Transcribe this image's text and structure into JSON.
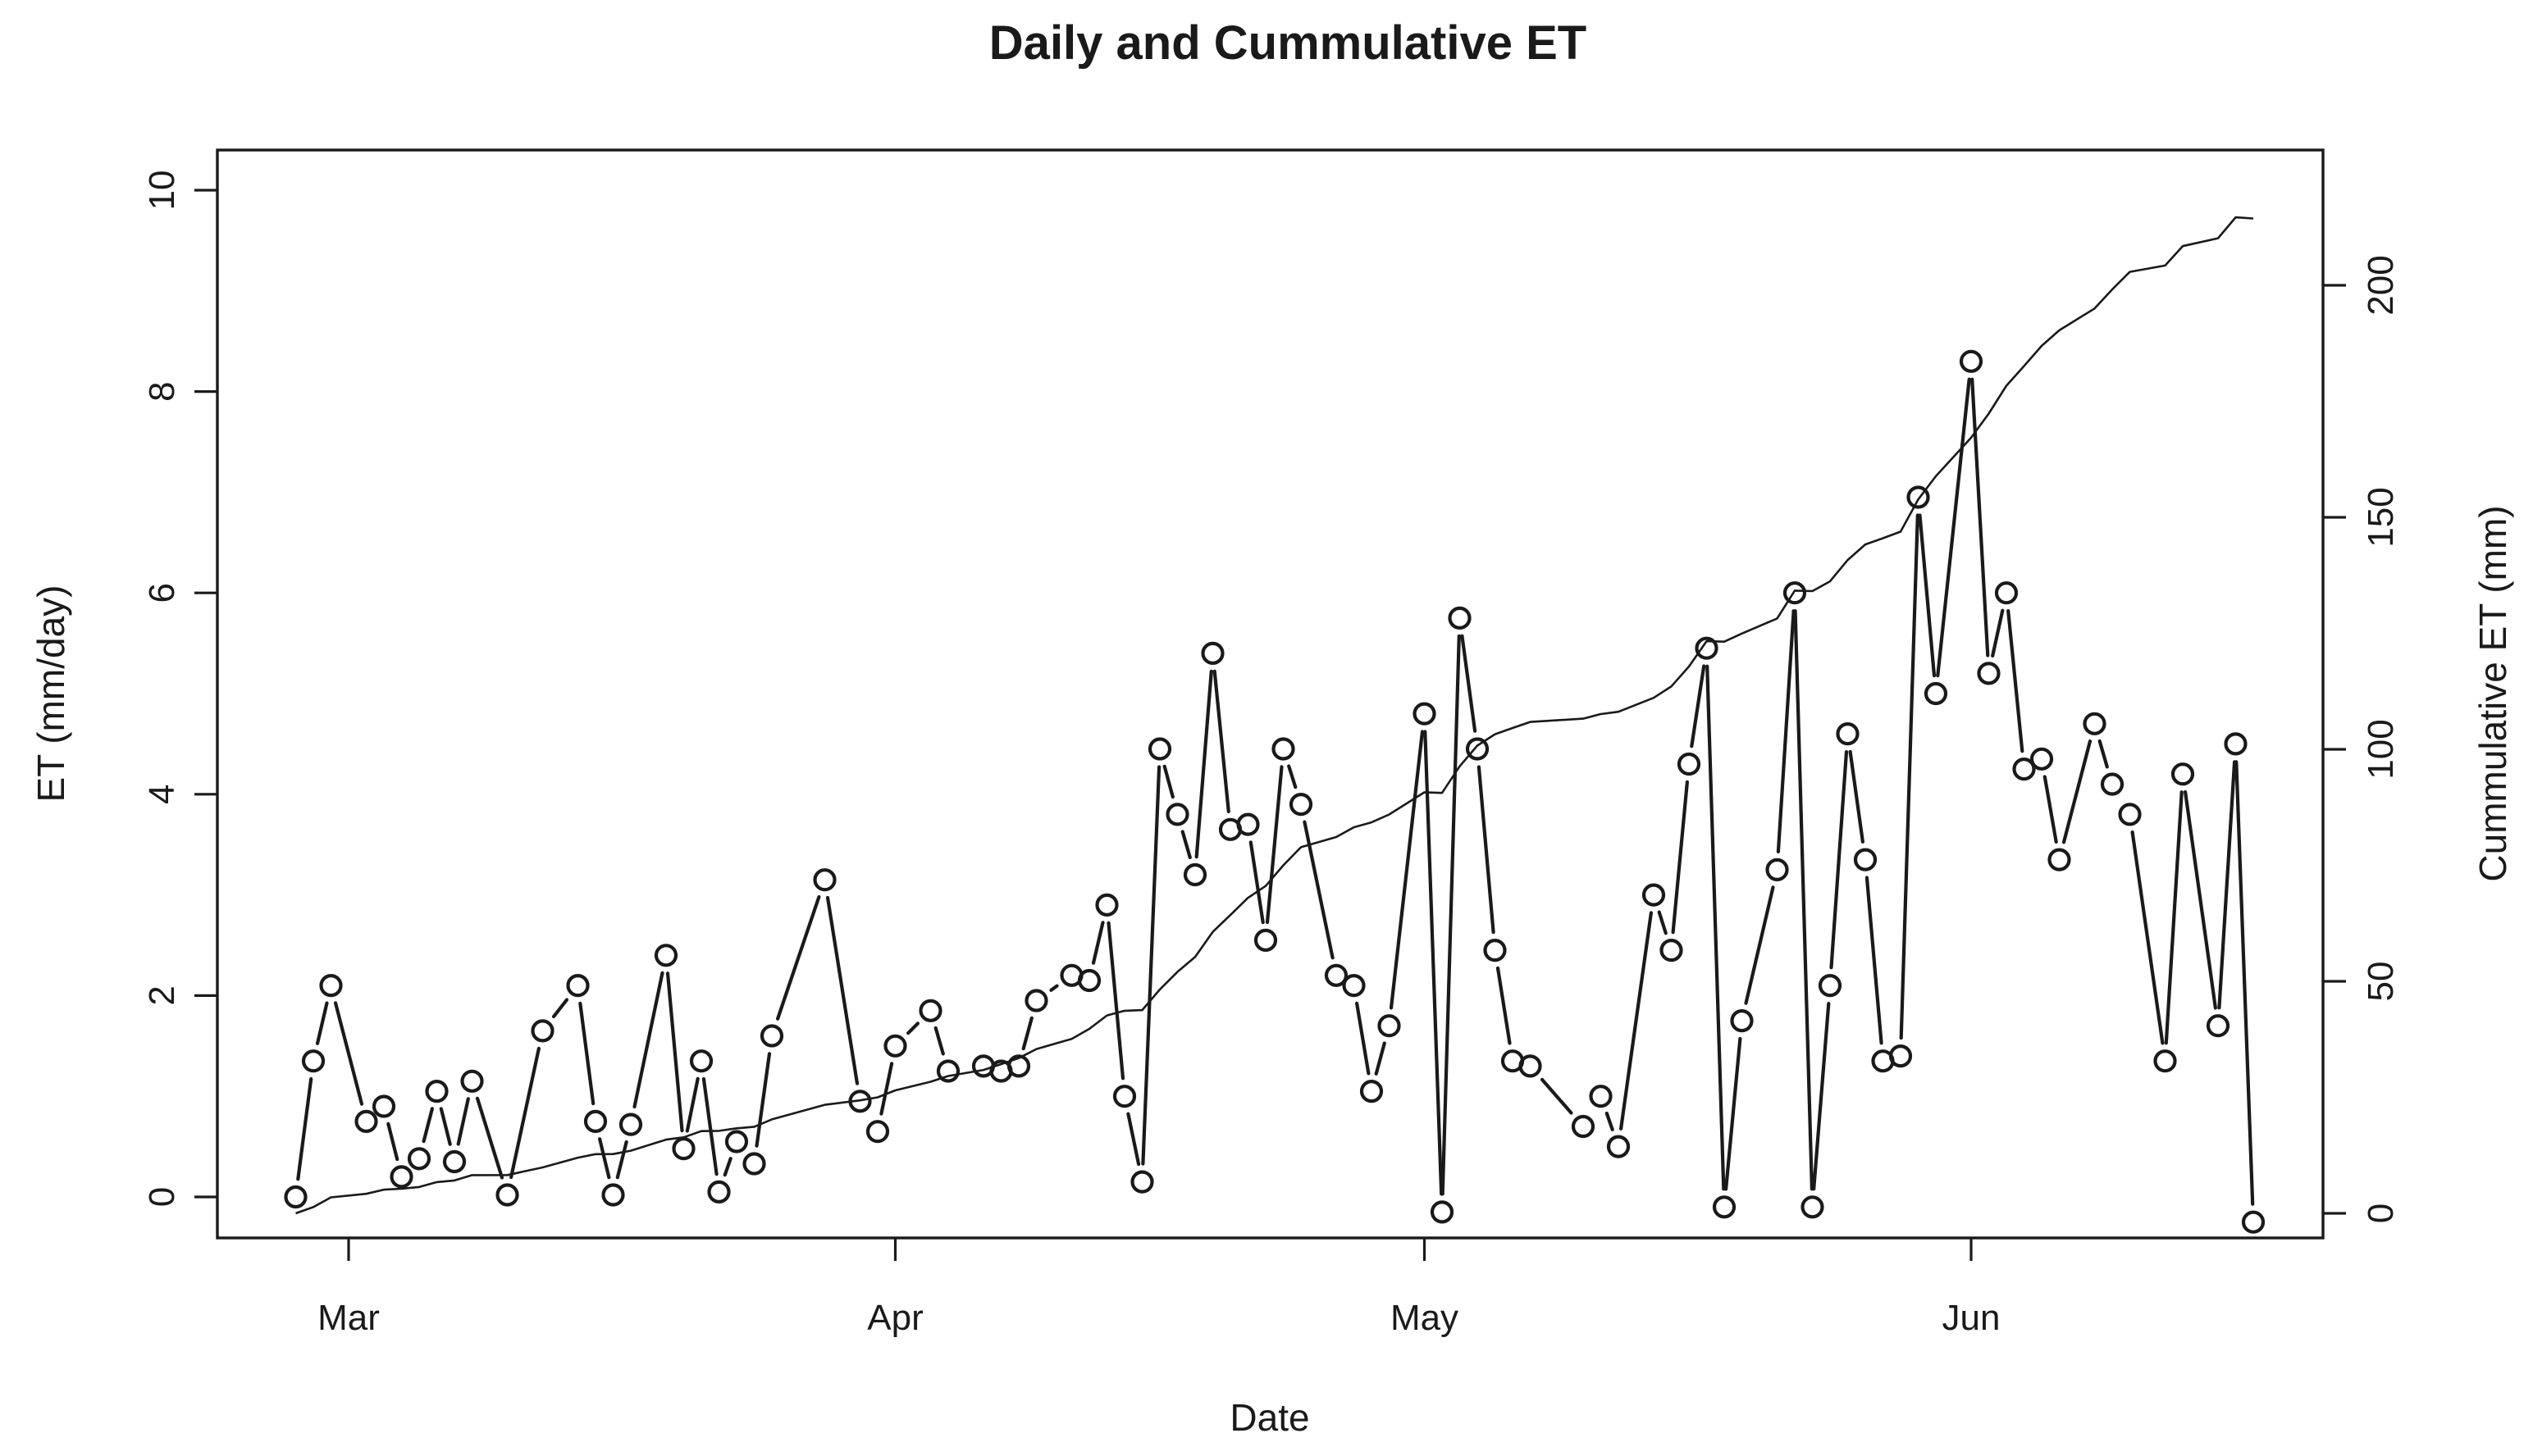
{
  "title": "Daily and Cummulative ET",
  "chart_data": {
    "type": "line",
    "title": "Daily and Cummulative ET",
    "xlabel": "Date",
    "ylabel_left": "ET (mm/day)",
    "ylabel_right": "Cummulative ET (mm)",
    "x_tick_labels": [
      "Mar",
      "Apr",
      "May",
      "Jun"
    ],
    "y_left_ticks": [
      0,
      2,
      4,
      6,
      8,
      10
    ],
    "y_right_ticks": [
      0,
      50,
      100,
      150,
      200
    ],
    "ylim_left": [
      0,
      10
    ],
    "ylim_right": [
      0,
      200
    ],
    "grid": false,
    "legend": "none",
    "marker": "open-circle",
    "x_range_dates": [
      "Feb 26",
      "Jun 17"
    ],
    "cumulative_total_mm_approx": 220,
    "series": [
      {
        "name": "Daily ET",
        "style": "points-with-line",
        "points": [
          {
            "date": "Feb 26",
            "day": 0,
            "et": 0.0
          },
          {
            "date": "Feb 27",
            "day": 1,
            "et": 1.35
          },
          {
            "date": "Feb 28",
            "day": 2,
            "et": 2.1
          },
          {
            "date": "Mar 2",
            "day": 4,
            "et": 0.75
          },
          {
            "date": "Mar 3",
            "day": 5,
            "et": 0.9
          },
          {
            "date": "Mar 4",
            "day": 6,
            "et": 0.2
          },
          {
            "date": "Mar 5",
            "day": 7,
            "et": 0.38
          },
          {
            "date": "Mar 6",
            "day": 8,
            "et": 1.05
          },
          {
            "date": "Mar 7",
            "day": 9,
            "et": 0.35
          },
          {
            "date": "Mar 8",
            "day": 10,
            "et": 1.15
          },
          {
            "date": "Mar 10",
            "day": 12,
            "et": 0.02
          },
          {
            "date": "Mar 12",
            "day": 14,
            "et": 1.65
          },
          {
            "date": "Mar 14",
            "day": 16,
            "et": 2.1
          },
          {
            "date": "Mar 15",
            "day": 17,
            "et": 0.75
          },
          {
            "date": "Mar 16",
            "day": 18,
            "et": 0.02
          },
          {
            "date": "Mar 17",
            "day": 19,
            "et": 0.72
          },
          {
            "date": "Mar 19",
            "day": 21,
            "et": 2.4
          },
          {
            "date": "Mar 20",
            "day": 22,
            "et": 0.48
          },
          {
            "date": "Mar 21",
            "day": 23,
            "et": 1.35
          },
          {
            "date": "Mar 22",
            "day": 24,
            "et": 0.05
          },
          {
            "date": "Mar 23",
            "day": 25,
            "et": 0.55
          },
          {
            "date": "Mar 24",
            "day": 26,
            "et": 0.33
          },
          {
            "date": "Mar 25",
            "day": 27,
            "et": 1.6
          },
          {
            "date": "Mar 28",
            "day": 30,
            "et": 3.15
          },
          {
            "date": "Mar 30",
            "day": 32,
            "et": 0.95
          },
          {
            "date": "Mar 31",
            "day": 33,
            "et": 0.65
          },
          {
            "date": "Apr 1",
            "day": 34,
            "et": 1.5
          },
          {
            "date": "Apr 3",
            "day": 36,
            "et": 1.85
          },
          {
            "date": "Apr 4",
            "day": 37,
            "et": 1.25
          },
          {
            "date": "Apr 6",
            "day": 39,
            "et": 1.3
          },
          {
            "date": "Apr 7",
            "day": 40,
            "et": 1.25
          },
          {
            "date": "Apr 8",
            "day": 41,
            "et": 1.3
          },
          {
            "date": "Apr 9",
            "day": 42,
            "et": 1.95
          },
          {
            "date": "Apr 11",
            "day": 44,
            "et": 2.2
          },
          {
            "date": "Apr 12",
            "day": 45,
            "et": 2.15
          },
          {
            "date": "Apr 13",
            "day": 46,
            "et": 2.9
          },
          {
            "date": "Apr 14",
            "day": 47,
            "et": 1.0
          },
          {
            "date": "Apr 15",
            "day": 48,
            "et": 0.15
          },
          {
            "date": "Apr 16",
            "day": 49,
            "et": 4.45
          },
          {
            "date": "Apr 17",
            "day": 50,
            "et": 3.8
          },
          {
            "date": "Apr 18",
            "day": 51,
            "et": 3.2
          },
          {
            "date": "Apr 19",
            "day": 52,
            "et": 5.4
          },
          {
            "date": "Apr 20",
            "day": 53,
            "et": 3.65
          },
          {
            "date": "Apr 21",
            "day": 54,
            "et": 3.7
          },
          {
            "date": "Apr 22",
            "day": 55,
            "et": 2.55
          },
          {
            "date": "Apr 23",
            "day": 56,
            "et": 4.45
          },
          {
            "date": "Apr 24",
            "day": 57,
            "et": 3.9
          },
          {
            "date": "Apr 26",
            "day": 59,
            "et": 2.2
          },
          {
            "date": "Apr 27",
            "day": 60,
            "et": 2.1
          },
          {
            "date": "Apr 28",
            "day": 61,
            "et": 1.05
          },
          {
            "date": "Apr 29",
            "day": 62,
            "et": 1.7
          },
          {
            "date": "May 1",
            "day": 64,
            "et": 4.8
          },
          {
            "date": "May 2",
            "day": 65,
            "et": -0.15
          },
          {
            "date": "May 3",
            "day": 66,
            "et": 5.75
          },
          {
            "date": "May 4",
            "day": 67,
            "et": 4.45
          },
          {
            "date": "May 5",
            "day": 68,
            "et": 2.45
          },
          {
            "date": "May 6",
            "day": 69,
            "et": 1.35
          },
          {
            "date": "May 7",
            "day": 70,
            "et": 1.3
          },
          {
            "date": "May 10",
            "day": 73,
            "et": 0.7
          },
          {
            "date": "May 11",
            "day": 74,
            "et": 1.0
          },
          {
            "date": "May 12",
            "day": 75,
            "et": 0.5
          },
          {
            "date": "May 14",
            "day": 77,
            "et": 3.0
          },
          {
            "date": "May 15",
            "day": 78,
            "et": 2.45
          },
          {
            "date": "May 16",
            "day": 79,
            "et": 4.3
          },
          {
            "date": "May 17",
            "day": 80,
            "et": 5.45
          },
          {
            "date": "May 18",
            "day": 81,
            "et": -0.1
          },
          {
            "date": "May 19",
            "day": 82,
            "et": 1.75
          },
          {
            "date": "May 21",
            "day": 84,
            "et": 3.25
          },
          {
            "date": "May 22",
            "day": 85,
            "et": 6.0
          },
          {
            "date": "May 23",
            "day": 86,
            "et": -0.1
          },
          {
            "date": "May 24",
            "day": 87,
            "et": 2.1
          },
          {
            "date": "May 25",
            "day": 88,
            "et": 4.6
          },
          {
            "date": "May 26",
            "day": 89,
            "et": 3.35
          },
          {
            "date": "May 27",
            "day": 90,
            "et": 1.35
          },
          {
            "date": "May 28",
            "day": 91,
            "et": 1.4
          },
          {
            "date": "May 29",
            "day": 92,
            "et": 6.95
          },
          {
            "date": "May 30",
            "day": 93,
            "et": 5.0
          },
          {
            "date": "Jun 1",
            "day": 95,
            "et": 8.3
          },
          {
            "date": "Jun 2",
            "day": 96,
            "et": 5.2
          },
          {
            "date": "Jun 3",
            "day": 97,
            "et": 6.0
          },
          {
            "date": "Jun 4",
            "day": 98,
            "et": 4.25
          },
          {
            "date": "Jun 5",
            "day": 99,
            "et": 4.35
          },
          {
            "date": "Jun 6",
            "day": 100,
            "et": 3.35
          },
          {
            "date": "Jun 8",
            "day": 102,
            "et": 4.7
          },
          {
            "date": "Jun 9",
            "day": 103,
            "et": 4.1
          },
          {
            "date": "Jun 10",
            "day": 104,
            "et": 3.8
          },
          {
            "date": "Jun 12",
            "day": 106,
            "et": 1.35
          },
          {
            "date": "Jun 13",
            "day": 107,
            "et": 4.2
          },
          {
            "date": "Jun 15",
            "day": 109,
            "et": 1.7
          },
          {
            "date": "Jun 16",
            "day": 110,
            "et": 4.5
          },
          {
            "date": "Jun 17",
            "day": 111,
            "et": -0.25
          }
        ]
      },
      {
        "name": "Cummulative ET",
        "style": "thin-line",
        "derivation": "running cumulative sum of Daily ET, read on right axis"
      }
    ]
  },
  "colors": {
    "foreground": "#1a1a1a",
    "background": "#ffffff"
  }
}
